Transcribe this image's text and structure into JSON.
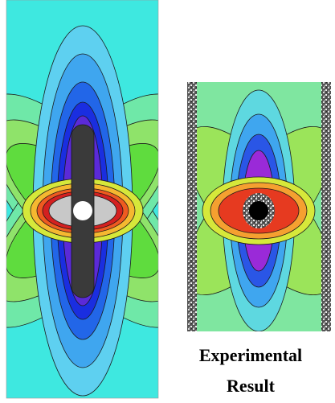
{
  "caption": {
    "lines": [
      "Experimental",
      "Result"
    ]
  }
}
